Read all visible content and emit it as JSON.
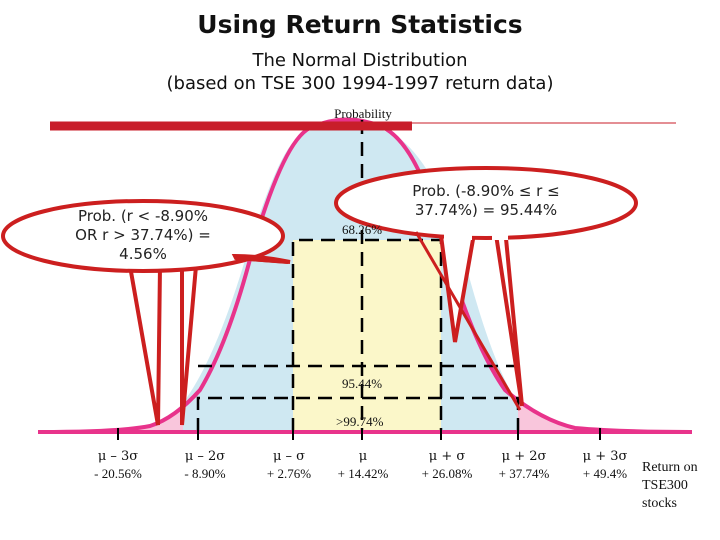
{
  "title": "Using Return Statistics",
  "subtitle_line1": "The Normal Distribution",
  "subtitle_line2": "(based on TSE 300 1994-1997 return data)",
  "y_axis_label": "Probability",
  "band_labels": {
    "one_sigma": "68.26%",
    "two_sigma": "95.44%",
    "three_sigma": ">99.74%"
  },
  "x_ticks": [
    {
      "symbol": "μ – 3σ",
      "value": "- 20.56%"
    },
    {
      "symbol": "μ – 2σ",
      "value": "- 8.90%"
    },
    {
      "symbol": "μ – σ",
      "value": "+ 2.76%"
    },
    {
      "symbol": "μ",
      "value": "+ 14.42%"
    },
    {
      "symbol": "μ + σ",
      "value": "+ 26.08%"
    },
    {
      "symbol": "μ + 2σ",
      "value": "+ 37.74%"
    },
    {
      "symbol": "μ + 3σ",
      "value": "+ 49.4%"
    }
  ],
  "x_axis_label_lines": [
    "Return on",
    "TSE300",
    "stocks"
  ],
  "callout_left": {
    "line1": "Prob. (r < -8.90%",
    "line2": "OR r > 37.74%) =",
    "line3": "4.56%"
  },
  "callout_right": {
    "line1": "Prob. (-8.90% ≤ r ≤",
    "line2": "37.74%) = 95.44%"
  },
  "colors": {
    "curve": "#e8338b",
    "axis": "#e8338b",
    "tails": "#f9c6dc",
    "two_sigma_band": "#cfe8f2",
    "one_sigma_band": "#fbf7c9",
    "probability_bar": "#c81e2a",
    "callout_stroke": "#cc1f1f"
  }
}
